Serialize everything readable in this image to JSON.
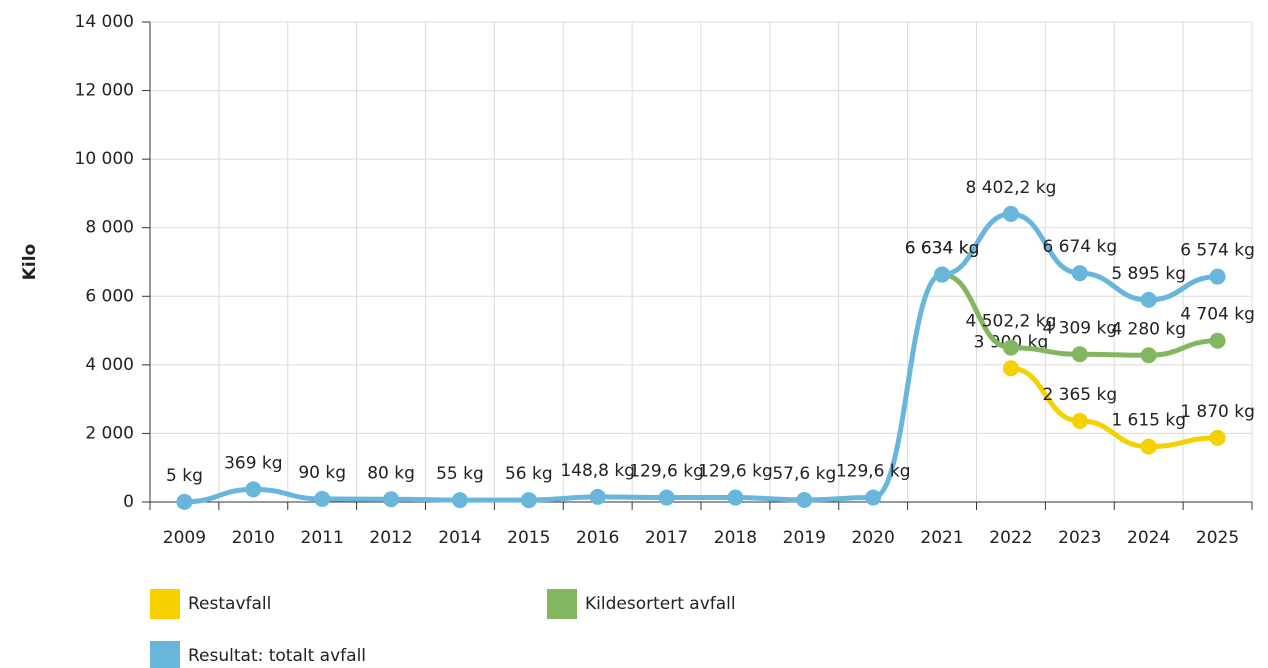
{
  "chart_data": {
    "type": "line",
    "y_label": "Kilo",
    "categories": [
      "2009",
      "2010",
      "2011",
      "2012",
      "2014",
      "2015",
      "2016",
      "2017",
      "2018",
      "2019",
      "2020",
      "2021",
      "2022",
      "2023",
      "2024",
      "2025"
    ],
    "series": [
      {
        "name": "Restavfall",
        "color": "#f7d000",
        "values": [
          null,
          null,
          null,
          null,
          null,
          null,
          null,
          null,
          null,
          null,
          null,
          null,
          3900,
          2365,
          1615,
          1870
        ],
        "value_labels": [
          null,
          null,
          null,
          null,
          null,
          null,
          null,
          null,
          null,
          null,
          null,
          null,
          "3 900 kg",
          "2 365 kg",
          "1 615 kg",
          "1 870 kg"
        ]
      },
      {
        "name": "Kildesortert avfall",
        "color": "#82b760",
        "values": [
          null,
          null,
          null,
          null,
          null,
          null,
          null,
          null,
          null,
          null,
          null,
          6634,
          4502.2,
          4309,
          4280,
          4704
        ],
        "value_labels": [
          null,
          null,
          null,
          null,
          null,
          null,
          null,
          null,
          null,
          null,
          null,
          "6 634 kg",
          "4 502,2 kg",
          "4 309 kg",
          "4 280 kg",
          "4 704 kg"
        ]
      },
      {
        "name": "Resultat: totalt avfall",
        "color": "#69b6dc",
        "values": [
          5,
          369,
          90,
          80,
          55,
          56,
          148.8,
          129.6,
          129.6,
          57.6,
          129.6,
          6634,
          8402.2,
          6674,
          5895,
          6574
        ],
        "value_labels": [
          "5 kg",
          "369 kg",
          "90 kg",
          "80 kg",
          "55 kg",
          "56 kg",
          "148,8 kg",
          "129,6 kg",
          "129,6 kg",
          "57,6 kg",
          "129,6 kg",
          "6 634 kg",
          "8 402,2 kg",
          "6 674 kg",
          "5 895 kg",
          "6 574 kg"
        ]
      }
    ],
    "ylim": [
      0,
      14000
    ],
    "yticks": [
      0,
      {
        "value": 2000,
        "label": "2 000"
      },
      {
        "value": 4000,
        "label": "4 000"
      },
      {
        "value": 6000,
        "label": "6 000"
      },
      {
        "value": 8000,
        "label": "8 000"
      },
      {
        "value": 10000,
        "label": "10 000"
      },
      {
        "value": 12000,
        "label": "12 000"
      },
      {
        "value": 14000,
        "label": "14 000"
      }
    ],
    "grid": true,
    "legend": "bottom"
  }
}
